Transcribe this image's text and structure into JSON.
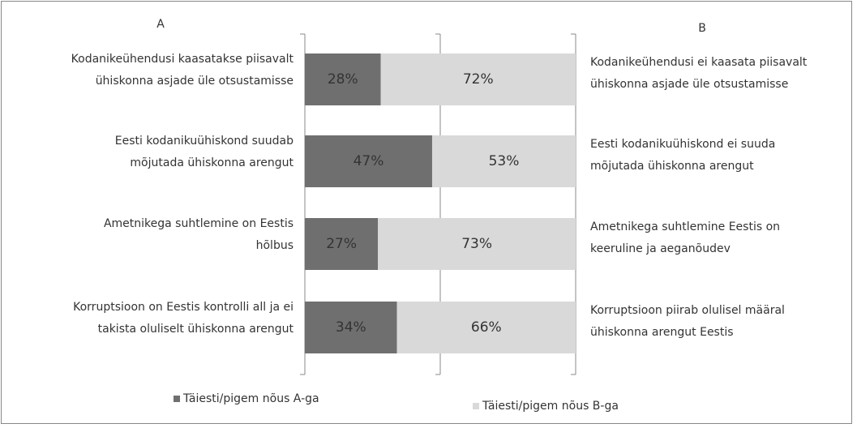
{
  "chart_data": {
    "type": "stacked-barh",
    "label_a": "A",
    "label_b": "B",
    "categories": [
      [
        "Kodanikeühendusi kaasatakse  piisavalt",
        "ühiskonna asjade üle otsustamisse"
      ],
      [
        "Eesti kodanikuühiskond suudab",
        "mõjutada ühiskonna arengut"
      ],
      [
        "Ametnikega suhtlemine on Eestis",
        "hõlbus"
      ],
      [
        "Korruptsioon on Eestis kontrolli all ja ei",
        "takista oluliselt ühiskonna arengut"
      ]
    ],
    "categories_b": [
      [
        "Kodanikeühendusi ei kaasata  piisavalt",
        "ühiskonna asjade üle otsustamisse"
      ],
      [
        "Eesti kodanikuühiskond ei suuda",
        "mõjutada ühiskonna arengut"
      ],
      [
        "Ametnikega suhtlemine Eestis on",
        "keeruline ja aeganõudev"
      ],
      [
        "Korruptsioon piirab olulisel määral",
        "ühiskonna arengut Eestis"
      ]
    ],
    "series": [
      {
        "name": "Täiesti/pigem nõus A-ga",
        "color": "#6f6f6f",
        "values": [
          28,
          47,
          27,
          34
        ],
        "value_labels": [
          "28%",
          "47%",
          "27%",
          "34%"
        ]
      },
      {
        "name": "Täiesti/pigem nõus B-ga",
        "color": "#d9d9d9",
        "values": [
          72,
          53,
          73,
          66
        ],
        "value_labels": [
          "72%",
          "53%",
          "73%",
          "66%"
        ]
      }
    ],
    "xlim": [
      0,
      100
    ],
    "xticks": [
      0,
      50,
      100
    ],
    "grid": true,
    "legend": "bottom"
  }
}
